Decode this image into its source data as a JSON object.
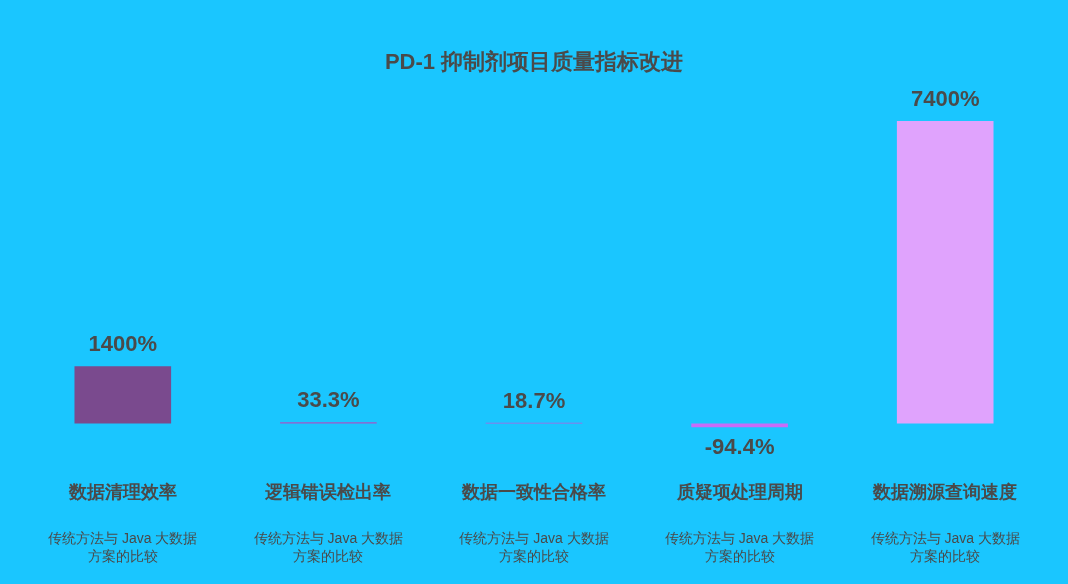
{
  "chart_data": {
    "type": "bar",
    "title": "PD-1 抑制剂项目质量指标改进",
    "categories": [
      "数据清理效率",
      "逻辑错误检出率",
      "数据一致性合格率",
      "质疑项处理周期",
      "数据溯源查询速度"
    ],
    "values": [
      1400,
      33.3,
      18.7,
      -94.4,
      7400
    ],
    "colors": [
      "#7a4a8e",
      "#a455c8",
      "#b85ce0",
      "#c96cf8",
      "#e0a3fd"
    ],
    "value_labels": [
      "1400%",
      "33.3%",
      "18.7%",
      "-94.4%",
      "7400%"
    ],
    "annotations": [
      "传统方法与 Java 大数据方案的比较",
      "传统方法与 Java 大数据方案的比较",
      "传统方法与 Java 大数据方案的比较",
      "传统方法与 Java 大数据方案的比较",
      "传统方法与 Java 大数据方案的比较"
    ],
    "tick_labels": "x",
    "grid": false,
    "legend": false
  }
}
